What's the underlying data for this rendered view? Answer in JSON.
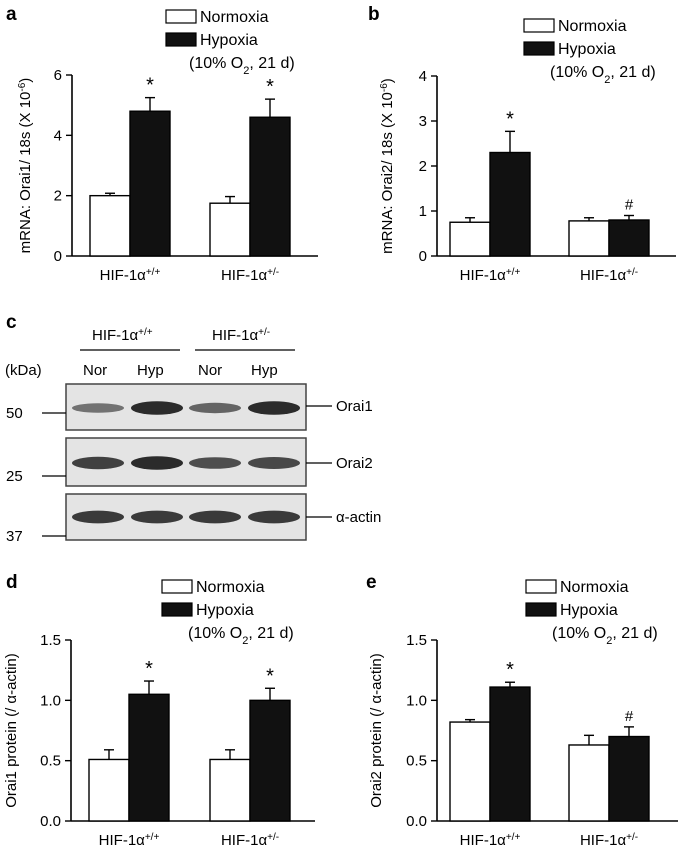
{
  "panels": [
    {
      "id": "a",
      "label": "a",
      "legend": {
        "items": [
          "Normoxia",
          "Hypoxia"
        ],
        "condition": "(10% O2, 21 d)"
      },
      "chart_data": {
        "type": "bar",
        "ylabel": "mRNA: Orai1/ 18s (X 10-6)",
        "ylim": [
          0,
          6
        ],
        "yticks": [
          "0",
          "2",
          "4",
          "6"
        ],
        "categories": [
          "HIF-1α+/+",
          "HIF-1α+/-"
        ],
        "series": [
          {
            "name": "Normoxia",
            "values": [
              2.0,
              1.75
            ],
            "errors": [
              0.08,
              0.22
            ],
            "color": "#ffffff"
          },
          {
            "name": "Hypoxia",
            "values": [
              4.8,
              4.6
            ],
            "errors": [
              0.45,
              0.6
            ],
            "color": "#111111"
          }
        ],
        "annotations": [
          {
            "category": 0,
            "series": 1,
            "text": "*"
          },
          {
            "category": 1,
            "series": 1,
            "text": "*"
          }
        ]
      }
    },
    {
      "id": "b",
      "label": "b",
      "legend": {
        "items": [
          "Normoxia",
          "Hypoxia"
        ],
        "condition": "(10% O2, 21 d)"
      },
      "chart_data": {
        "type": "bar",
        "ylabel": "mRNA: Orai2/ 18s (X 10-6)",
        "ylim": [
          0,
          4
        ],
        "yticks": [
          "0",
          "1",
          "2",
          "3",
          "4"
        ],
        "categories": [
          "HIF-1α+/+",
          "HIF-1α+/-"
        ],
        "series": [
          {
            "name": "Normoxia",
            "values": [
              0.75,
              0.78
            ],
            "errors": [
              0.1,
              0.07
            ],
            "color": "#ffffff"
          },
          {
            "name": "Hypoxia",
            "values": [
              2.3,
              0.8
            ],
            "errors": [
              0.47,
              0.1
            ],
            "color": "#111111"
          }
        ],
        "annotations": [
          {
            "category": 0,
            "series": 1,
            "text": "*"
          },
          {
            "category": 1,
            "series": 1,
            "text": "#"
          }
        ]
      }
    },
    {
      "id": "d",
      "label": "d",
      "legend": {
        "items": [
          "Normoxia",
          "Hypoxia"
        ],
        "condition": "(10% O2, 21 d)"
      },
      "chart_data": {
        "type": "bar",
        "ylabel": "Orai1 protein (/ α-actin)",
        "ylim": [
          0,
          1.5
        ],
        "yticks": [
          "0.0",
          "0.5",
          "1.0",
          "1.5"
        ],
        "categories": [
          "HIF-1α+/+",
          "HIF-1α+/-"
        ],
        "series": [
          {
            "name": "Normoxia",
            "values": [
              0.51,
              0.51
            ],
            "errors": [
              0.08,
              0.08
            ],
            "color": "#ffffff"
          },
          {
            "name": "Hypoxia",
            "values": [
              1.05,
              1.0
            ],
            "errors": [
              0.11,
              0.1
            ],
            "color": "#111111"
          }
        ],
        "annotations": [
          {
            "category": 0,
            "series": 1,
            "text": "*"
          },
          {
            "category": 1,
            "series": 1,
            "text": "*"
          }
        ]
      }
    },
    {
      "id": "e",
      "label": "e",
      "legend": {
        "items": [
          "Normoxia",
          "Hypoxia"
        ],
        "condition": "(10% O2, 21 d)"
      },
      "chart_data": {
        "type": "bar",
        "ylabel": "Orai2 protein (/ α-actin)",
        "ylim": [
          0,
          1.5
        ],
        "yticks": [
          "0.0",
          "0.5",
          "1.0",
          "1.5"
        ],
        "categories": [
          "HIF-1α+/+",
          "HIF-1α+/-"
        ],
        "series": [
          {
            "name": "Normoxia",
            "values": [
              0.82,
              0.63
            ],
            "errors": [
              0.02,
              0.08
            ],
            "color": "#ffffff"
          },
          {
            "name": "Hypoxia",
            "values": [
              1.11,
              0.7
            ],
            "errors": [
              0.04,
              0.08
            ],
            "color": "#111111"
          }
        ],
        "annotations": [
          {
            "category": 0,
            "series": 1,
            "text": "*"
          },
          {
            "category": 1,
            "series": 1,
            "text": "#"
          }
        ]
      }
    }
  ],
  "blot": {
    "label": "c",
    "groups": [
      "HIF-1α+/+",
      "HIF-1α+/-"
    ],
    "lanes": [
      "Nor",
      "Hyp",
      "Nor",
      "Hyp"
    ],
    "kda_label": "(kDa)",
    "bands": [
      {
        "name": "Orai1",
        "marker": "50",
        "intensities": [
          0.45,
          0.95,
          0.55,
          0.95
        ]
      },
      {
        "name": "Orai2",
        "marker": "25",
        "intensities": [
          0.8,
          0.95,
          0.7,
          0.75
        ]
      },
      {
        "name": "α-actin",
        "marker": "37",
        "intensities": [
          0.85,
          0.85,
          0.85,
          0.85
        ]
      }
    ]
  }
}
